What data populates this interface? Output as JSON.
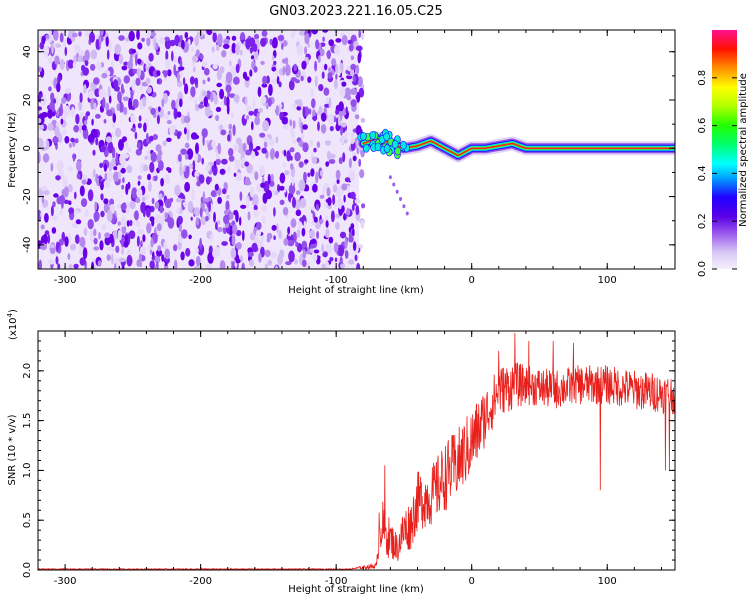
{
  "figure": {
    "title": "GN03.2023.221.16.05.C25"
  },
  "chart_data": [
    {
      "type": "heatmap",
      "xlabel": "Height of straight line (km)",
      "ylabel": "Frequency (Hz)",
      "xlim": [
        -320,
        150
      ],
      "ylim": [
        -50,
        49
      ],
      "xticks": [
        -300,
        -200,
        -100,
        0,
        100
      ],
      "yticks": [
        -40,
        -20,
        0,
        20,
        40
      ],
      "ytick_labels": [
        "-40",
        "-20",
        "0",
        "20",
        "40"
      ],
      "noise_region_x": [
        -320,
        -83
      ],
      "signal": {
        "x": [
          -80,
          -70,
          -60,
          -50,
          -40,
          -30,
          -20,
          -10,
          0,
          10,
          20,
          30,
          40,
          60,
          80,
          100,
          120,
          150
        ],
        "freq": [
          2,
          4,
          2,
          0,
          1,
          3,
          0,
          -3,
          0,
          0,
          1,
          2,
          0,
          0,
          0,
          0,
          0,
          0
        ]
      },
      "colorbar": {
        "label": "Normalized spectral amplitude",
        "range": [
          0,
          1
        ],
        "ticks": [
          0.0,
          0.2,
          0.4,
          0.6,
          0.8
        ],
        "tick_labels": [
          "0.0",
          "0.2",
          "0.4",
          "0.6",
          "0.8"
        ]
      },
      "grid": false
    },
    {
      "type": "line",
      "xlabel": "Height of straight line (km)",
      "ylabel": "SNR (10 * v/v)",
      "y_multiplier": "(x10",
      "y_multiplier_exp": "4",
      "y_multiplier_close": ")",
      "xlim": [
        -320,
        150
      ],
      "ylim": [
        0,
        2.4
      ],
      "xticks": [
        -300,
        -200,
        -100,
        0,
        100
      ],
      "yticks": [
        0.0,
        0.5,
        1.0,
        1.5,
        2.0
      ],
      "ytick_labels": [
        "0.0",
        "0.5",
        "1.0",
        "1.5",
        "2.0"
      ],
      "series": [
        {
          "color": "#e8201c",
          "envelope": {
            "x": [
              -320,
              -90,
              -70,
              -68,
              -65,
              -60,
              -55,
              -50,
              -45,
              -40,
              -30,
              -20,
              -10,
              0,
              10,
              20,
              30,
              40,
              60,
              80,
              100,
              120,
              150
            ],
            "y": [
              0.01,
              0.01,
              0.05,
              0.6,
              0.45,
              0.35,
              0.25,
              0.45,
              0.5,
              0.75,
              0.8,
              1.0,
              1.15,
              1.35,
              1.6,
              1.85,
              1.9,
              1.9,
              1.85,
              1.9,
              1.9,
              1.85,
              1.8
            ],
            "amp": [
              0.005,
              0.005,
              0.03,
              0.35,
              0.25,
              0.2,
              0.15,
              0.25,
              0.25,
              0.3,
              0.3,
              0.35,
              0.35,
              0.35,
              0.3,
              0.25,
              0.25,
              0.2,
              0.2,
              0.2,
              0.2,
              0.2,
              0.2
            ]
          },
          "peaks": [
            {
              "x": -64,
              "y": 1.05
            },
            {
              "x": 20,
              "y": 2.2
            },
            {
              "x": 32,
              "y": 2.38
            },
            {
              "x": 42,
              "y": 2.3
            },
            {
              "x": 60,
              "y": 2.3
            },
            {
              "x": 75,
              "y": 2.28
            },
            {
              "x": 95,
              "y": 0.8
            },
            {
              "x": 143,
              "y": 1.0
            },
            {
              "x": 146,
              "y": 1.0
            }
          ]
        }
      ],
      "grid": false
    }
  ]
}
